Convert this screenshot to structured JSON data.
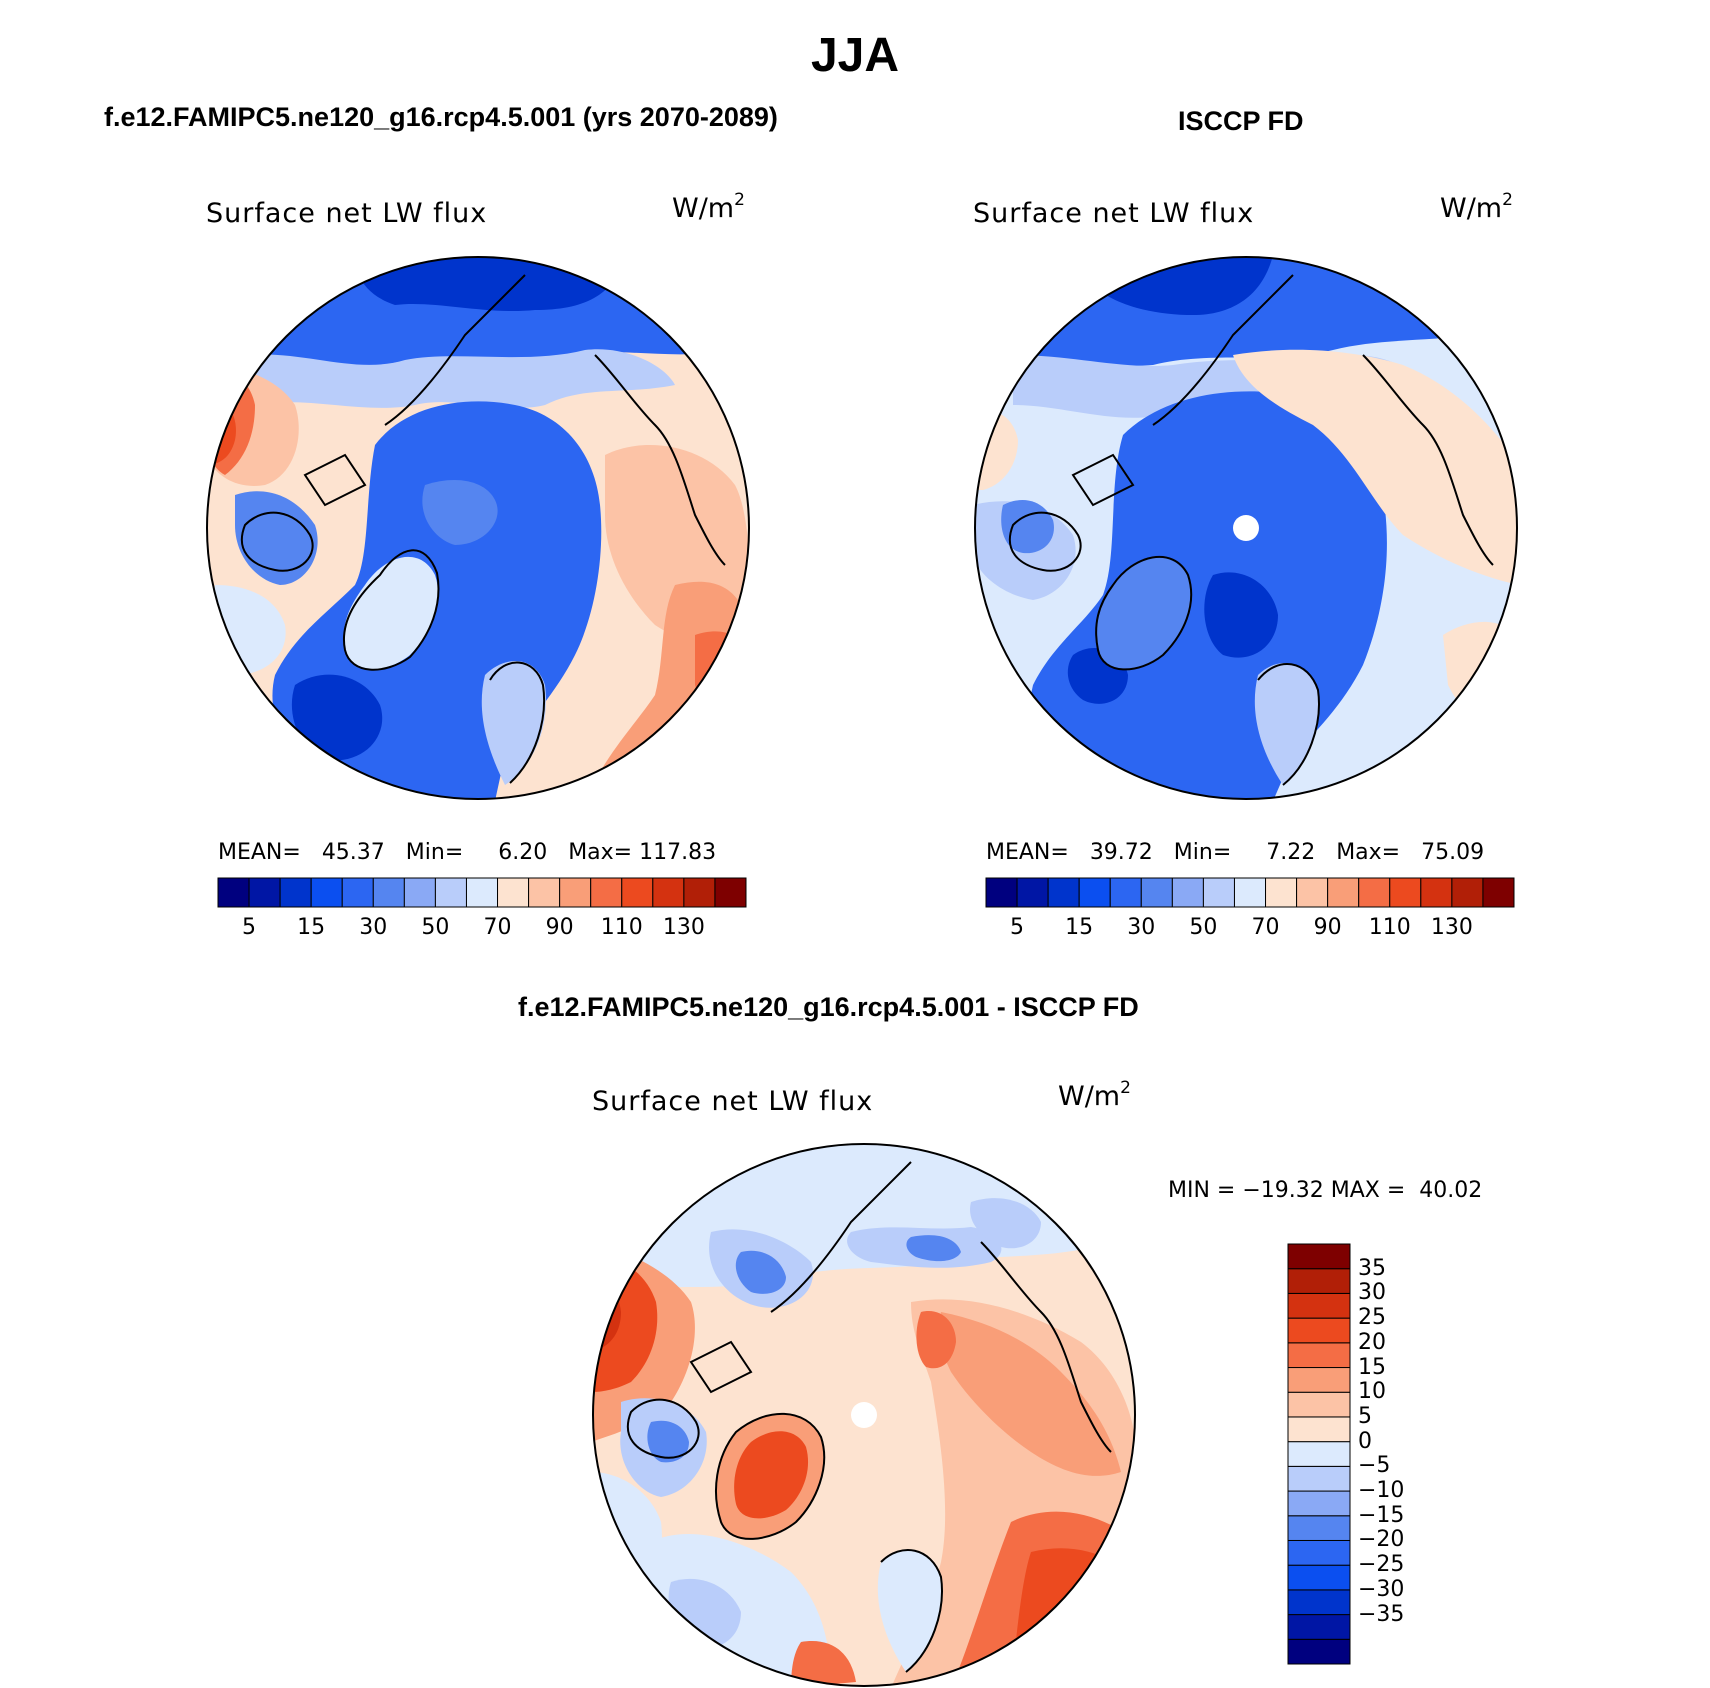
{
  "figure": {
    "title": "JJA"
  },
  "panels": [
    {
      "id": "model",
      "case_title": "f.e12.FAMIPC5.ne120_g16.rcp4.5.001 (yrs 2070-2089)",
      "variable": "Surface net LW flux",
      "units": "W/m",
      "units_sup": "2",
      "stats": {
        "mean_label": "MEAN=",
        "mean": "45.37",
        "min_label": "Min=",
        "min": "6.20",
        "max_label": "Max=",
        "max": "117.83"
      }
    },
    {
      "id": "obs",
      "case_title": "ISCCP FD",
      "variable": "Surface net LW flux",
      "units": "W/m",
      "units_sup": "2",
      "stats": {
        "mean_label": "MEAN=",
        "mean": "39.72",
        "min_label": "Min=",
        "min": "7.22",
        "max_label": "Max=",
        "max": "75.09"
      }
    },
    {
      "id": "diff",
      "case_title": "f.e12.FAMIPC5.ne120_g16.rcp4.5.001 - ISCCP FD",
      "variable": "Surface net LW flux",
      "units": "W/m",
      "units_sup": "2",
      "stats": {
        "text": "MIN = −19.32 MAX =  40.02"
      }
    }
  ],
  "colorbars": {
    "absolute": {
      "orientation": "horizontal",
      "colors": [
        "#00007f",
        "#0016a5",
        "#0034cc",
        "#0b4ff0",
        "#2c66f2",
        "#5585f0",
        "#8aa9f5",
        "#b9cdfa",
        "#dceafd",
        "#fde3d0",
        "#fcc3a6",
        "#f99e78",
        "#f46d45",
        "#ec4a1f",
        "#d43210",
        "#b11f07",
        "#7e0000"
      ],
      "tick_labels": [
        "5",
        "15",
        "30",
        "50",
        "70",
        "90",
        "110",
        "130"
      ]
    },
    "difference": {
      "orientation": "vertical",
      "colors": [
        "#00007f",
        "#0016a5",
        "#0034cc",
        "#0b4ff0",
        "#2c66f2",
        "#5585f0",
        "#8aa9f5",
        "#b9cdfa",
        "#dceafd",
        "#fde3d0",
        "#fcc3a6",
        "#f99e78",
        "#f46d45",
        "#ec4a1f",
        "#d43210",
        "#b11f07",
        "#7e0000"
      ],
      "tick_labels": [
        "35",
        "30",
        "25",
        "20",
        "15",
        "10",
        "5",
        "0",
        "−5",
        "−10",
        "−15",
        "−20",
        "−25",
        "−30",
        "−35"
      ]
    }
  },
  "map_colors": {
    "deep_blue": "#0034cc",
    "blue": "#2c66f2",
    "mid_blue": "#5585f0",
    "light_blue": "#b9cdfa",
    "pale_blue": "#dceafd",
    "cream": "#fde3d0",
    "peach": "#fcc3a6",
    "salmon": "#f99e78",
    "orange": "#f46d45",
    "red_orange": "#ec4a1f",
    "dark_red": "#d43210",
    "missing": "#ffffff",
    "coast": "#000000"
  }
}
